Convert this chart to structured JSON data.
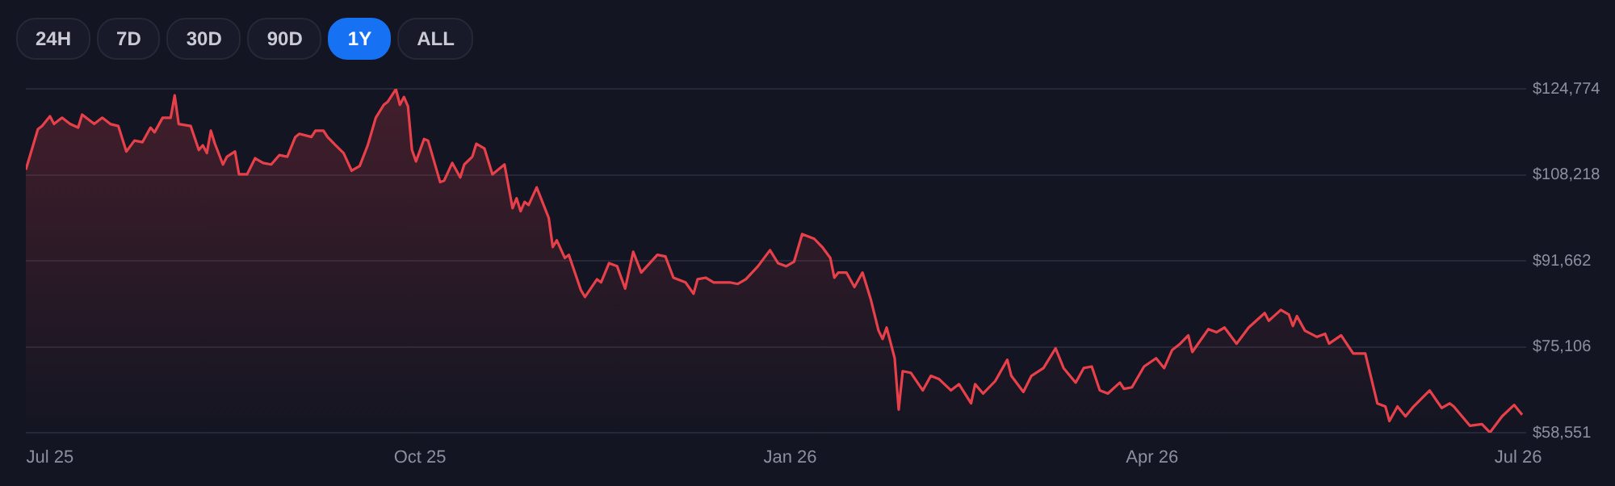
{
  "chart_data": {
    "type": "area",
    "annotations": [
      "24H",
      "7D",
      "30D",
      "90D",
      "1Y",
      "ALL"
    ],
    "x": [
      "2025-06-25",
      "2025-06-28",
      "2025-06-29",
      "2025-07-01",
      "2025-07-02",
      "2025-07-04",
      "2025-07-06",
      "2025-07-08",
      "2025-07-09",
      "2025-07-12",
      "2025-07-14",
      "2025-07-16",
      "2025-07-18",
      "2025-07-20",
      "2025-07-22",
      "2025-07-24",
      "2025-07-26",
      "2025-07-27",
      "2025-07-29",
      "2025-07-31",
      "2025-08-01",
      "2025-08-02",
      "2025-08-05",
      "2025-08-07",
      "2025-08-08",
      "2025-08-09",
      "2025-08-10",
      "2025-08-11",
      "2025-08-13",
      "2025-08-14",
      "2025-08-16",
      "2025-08-17",
      "2025-08-19",
      "2025-08-21",
      "2025-08-23",
      "2025-08-25",
      "2025-08-27",
      "2025-08-29",
      "2025-08-31",
      "2025-09-01",
      "2025-09-04",
      "2025-09-05",
      "2025-09-07",
      "2025-09-08",
      "2025-09-10",
      "2025-09-12",
      "2025-09-14",
      "2025-09-16",
      "2025-09-18",
      "2025-09-20",
      "2025-09-22",
      "2025-09-23",
      "2025-09-25",
      "2025-09-26",
      "2025-09-27",
      "2025-09-28",
      "2025-09-29",
      "2025-09-30",
      "2025-10-02",
      "2025-10-03",
      "2025-10-06",
      "2025-10-07",
      "2025-10-09",
      "2025-10-11",
      "2025-10-12",
      "2025-10-14",
      "2025-10-15",
      "2025-10-17",
      "2025-10-19",
      "2025-10-22",
      "2025-10-24",
      "2025-10-25",
      "2025-10-26",
      "2025-10-27",
      "2025-10-28",
      "2025-10-30",
      "2025-11-02",
      "2025-11-03",
      "2025-11-04",
      "2025-11-06",
      "2025-11-07",
      "2025-11-10",
      "2025-11-11",
      "2025-11-14",
      "2025-11-15",
      "2025-11-17",
      "2025-11-19",
      "2025-11-21",
      "2025-11-23",
      "2025-11-25",
      "2025-11-29",
      "2025-12-01",
      "2025-12-03",
      "2025-12-06",
      "2025-12-08",
      "2025-12-09",
      "2025-12-11",
      "2025-12-13",
      "2025-12-17",
      "2025-12-19",
      "2025-12-21",
      "2025-12-24",
      "2025-12-27",
      "2025-12-29",
      "2025-12-31",
      "2026-01-02",
      "2026-01-04",
      "2026-01-07",
      "2026-01-09",
      "2026-01-11",
      "2026-01-12",
      "2026-01-13",
      "2026-01-15",
      "2026-01-17",
      "2026-01-19",
      "2026-01-21",
      "2026-01-23",
      "2026-01-24",
      "2026-01-25",
      "2026-01-27",
      "2026-01-28",
      "2026-01-29",
      "2026-01-31",
      "2026-02-03",
      "2026-02-05",
      "2026-02-07",
      "2026-02-10",
      "2026-02-12",
      "2026-02-15",
      "2026-02-16",
      "2026-02-18",
      "2026-02-21",
      "2026-02-24",
      "2026-02-25",
      "2026-02-28",
      "2026-03-02",
      "2026-03-05",
      "2026-03-08",
      "2026-03-10",
      "2026-03-13",
      "2026-03-15",
      "2026-03-17",
      "2026-03-19",
      "2026-03-21",
      "2026-03-24",
      "2026-03-25",
      "2026-03-27",
      "2026-03-30",
      "2026-04-02",
      "2026-04-04",
      "2026-04-06",
      "2026-04-08",
      "2026-04-10",
      "2026-04-11",
      "2026-04-15",
      "2026-04-17",
      "2026-04-19",
      "2026-04-22",
      "2026-04-25",
      "2026-04-29",
      "2026-04-30",
      "2026-05-03",
      "2026-05-05",
      "2026-05-06",
      "2026-05-07",
      "2026-05-09",
      "2026-05-12",
      "2026-05-14",
      "2026-05-15",
      "2026-05-18",
      "2026-05-21",
      "2026-05-24",
      "2026-05-27",
      "2026-05-29",
      "2026-05-30",
      "2026-06-01",
      "2026-06-03",
      "2026-06-05",
      "2026-06-09",
      "2026-06-12",
      "2026-06-14",
      "2026-06-15",
      "2026-06-19",
      "2026-06-22",
      "2026-06-24",
      "2026-06-27",
      "2026-06-30",
      "2026-07-02"
    ],
    "series": [
      {
        "color": "#e8404a",
        "values": [
          109200,
          117000,
          117600,
          119500,
          118000,
          119200,
          118000,
          117300,
          119800,
          118000,
          119200,
          118000,
          117600,
          112700,
          114800,
          114500,
          117300,
          116400,
          119200,
          119200,
          123500,
          118000,
          117600,
          113000,
          113900,
          112400,
          116700,
          114200,
          110200,
          111700,
          112700,
          108300,
          108300,
          111400,
          110500,
          110200,
          112000,
          111700,
          115500,
          116100,
          115500,
          116700,
          116700,
          115500,
          113900,
          112400,
          109000,
          109900,
          113900,
          119200,
          121700,
          122300,
          124700,
          121700,
          123200,
          121400,
          113000,
          110800,
          115100,
          114800,
          106800,
          107100,
          110500,
          107700,
          110200,
          111700,
          114200,
          113300,
          108300,
          110200,
          101800,
          103700,
          101200,
          103000,
          102400,
          105800,
          99900,
          94300,
          95600,
          92200,
          92800,
          86000,
          84700,
          88100,
          87500,
          91200,
          90600,
          86300,
          93400,
          89400,
          92800,
          92500,
          88400,
          87500,
          85300,
          88100,
          88400,
          87500,
          87500,
          87200,
          88100,
          90600,
          93700,
          91200,
          90600,
          91500,
          96800,
          95900,
          94300,
          92200,
          88400,
          89400,
          89400,
          86600,
          89400,
          84400,
          78200,
          76600,
          78800,
          72900,
          63000,
          70400,
          70100,
          66700,
          69500,
          68900,
          66700,
          67900,
          64200,
          67900,
          66100,
          68500,
          72600,
          69500,
          66400,
          69500,
          71000,
          74800,
          71000,
          68200,
          71000,
          71300,
          66700,
          66100,
          68200,
          67000,
          67300,
          71300,
          72900,
          71000,
          74500,
          75700,
          77300,
          74100,
          78500,
          77900,
          78800,
          75700,
          78800,
          81600,
          80100,
          82200,
          81300,
          79100,
          81000,
          78200,
          77000,
          77600,
          75700,
          77300,
          73800,
          73800,
          64200,
          63600,
          60800,
          63600,
          61700,
          63600,
          66700,
          63300,
          64200,
          63600,
          59900,
          60200,
          58600,
          61700,
          63900,
          62000
        ]
      }
    ],
    "xlim": [
      "2025-06-25",
      "2026-07-03"
    ],
    "xticks": [
      {
        "value": "2025-07-01",
        "label": "Jul 25"
      },
      {
        "value": "2025-10-01",
        "label": "Oct 25"
      },
      {
        "value": "2026-01-01",
        "label": "Jan 26"
      },
      {
        "value": "2026-04-01",
        "label": "Apr 26"
      },
      {
        "value": "2026-07-01",
        "label": "Jul 26"
      }
    ],
    "ylim": [
      58551,
      124774
    ],
    "yticks": [
      {
        "value": 58551,
        "label": "$58,551"
      },
      {
        "value": 75106,
        "label": "$75,106"
      },
      {
        "value": 91662,
        "label": "$91,662"
      },
      {
        "value": 108218,
        "label": "$108,218"
      },
      {
        "value": 124774,
        "label": "$124,774"
      }
    ],
    "grid": "y",
    "legend": false
  }
}
